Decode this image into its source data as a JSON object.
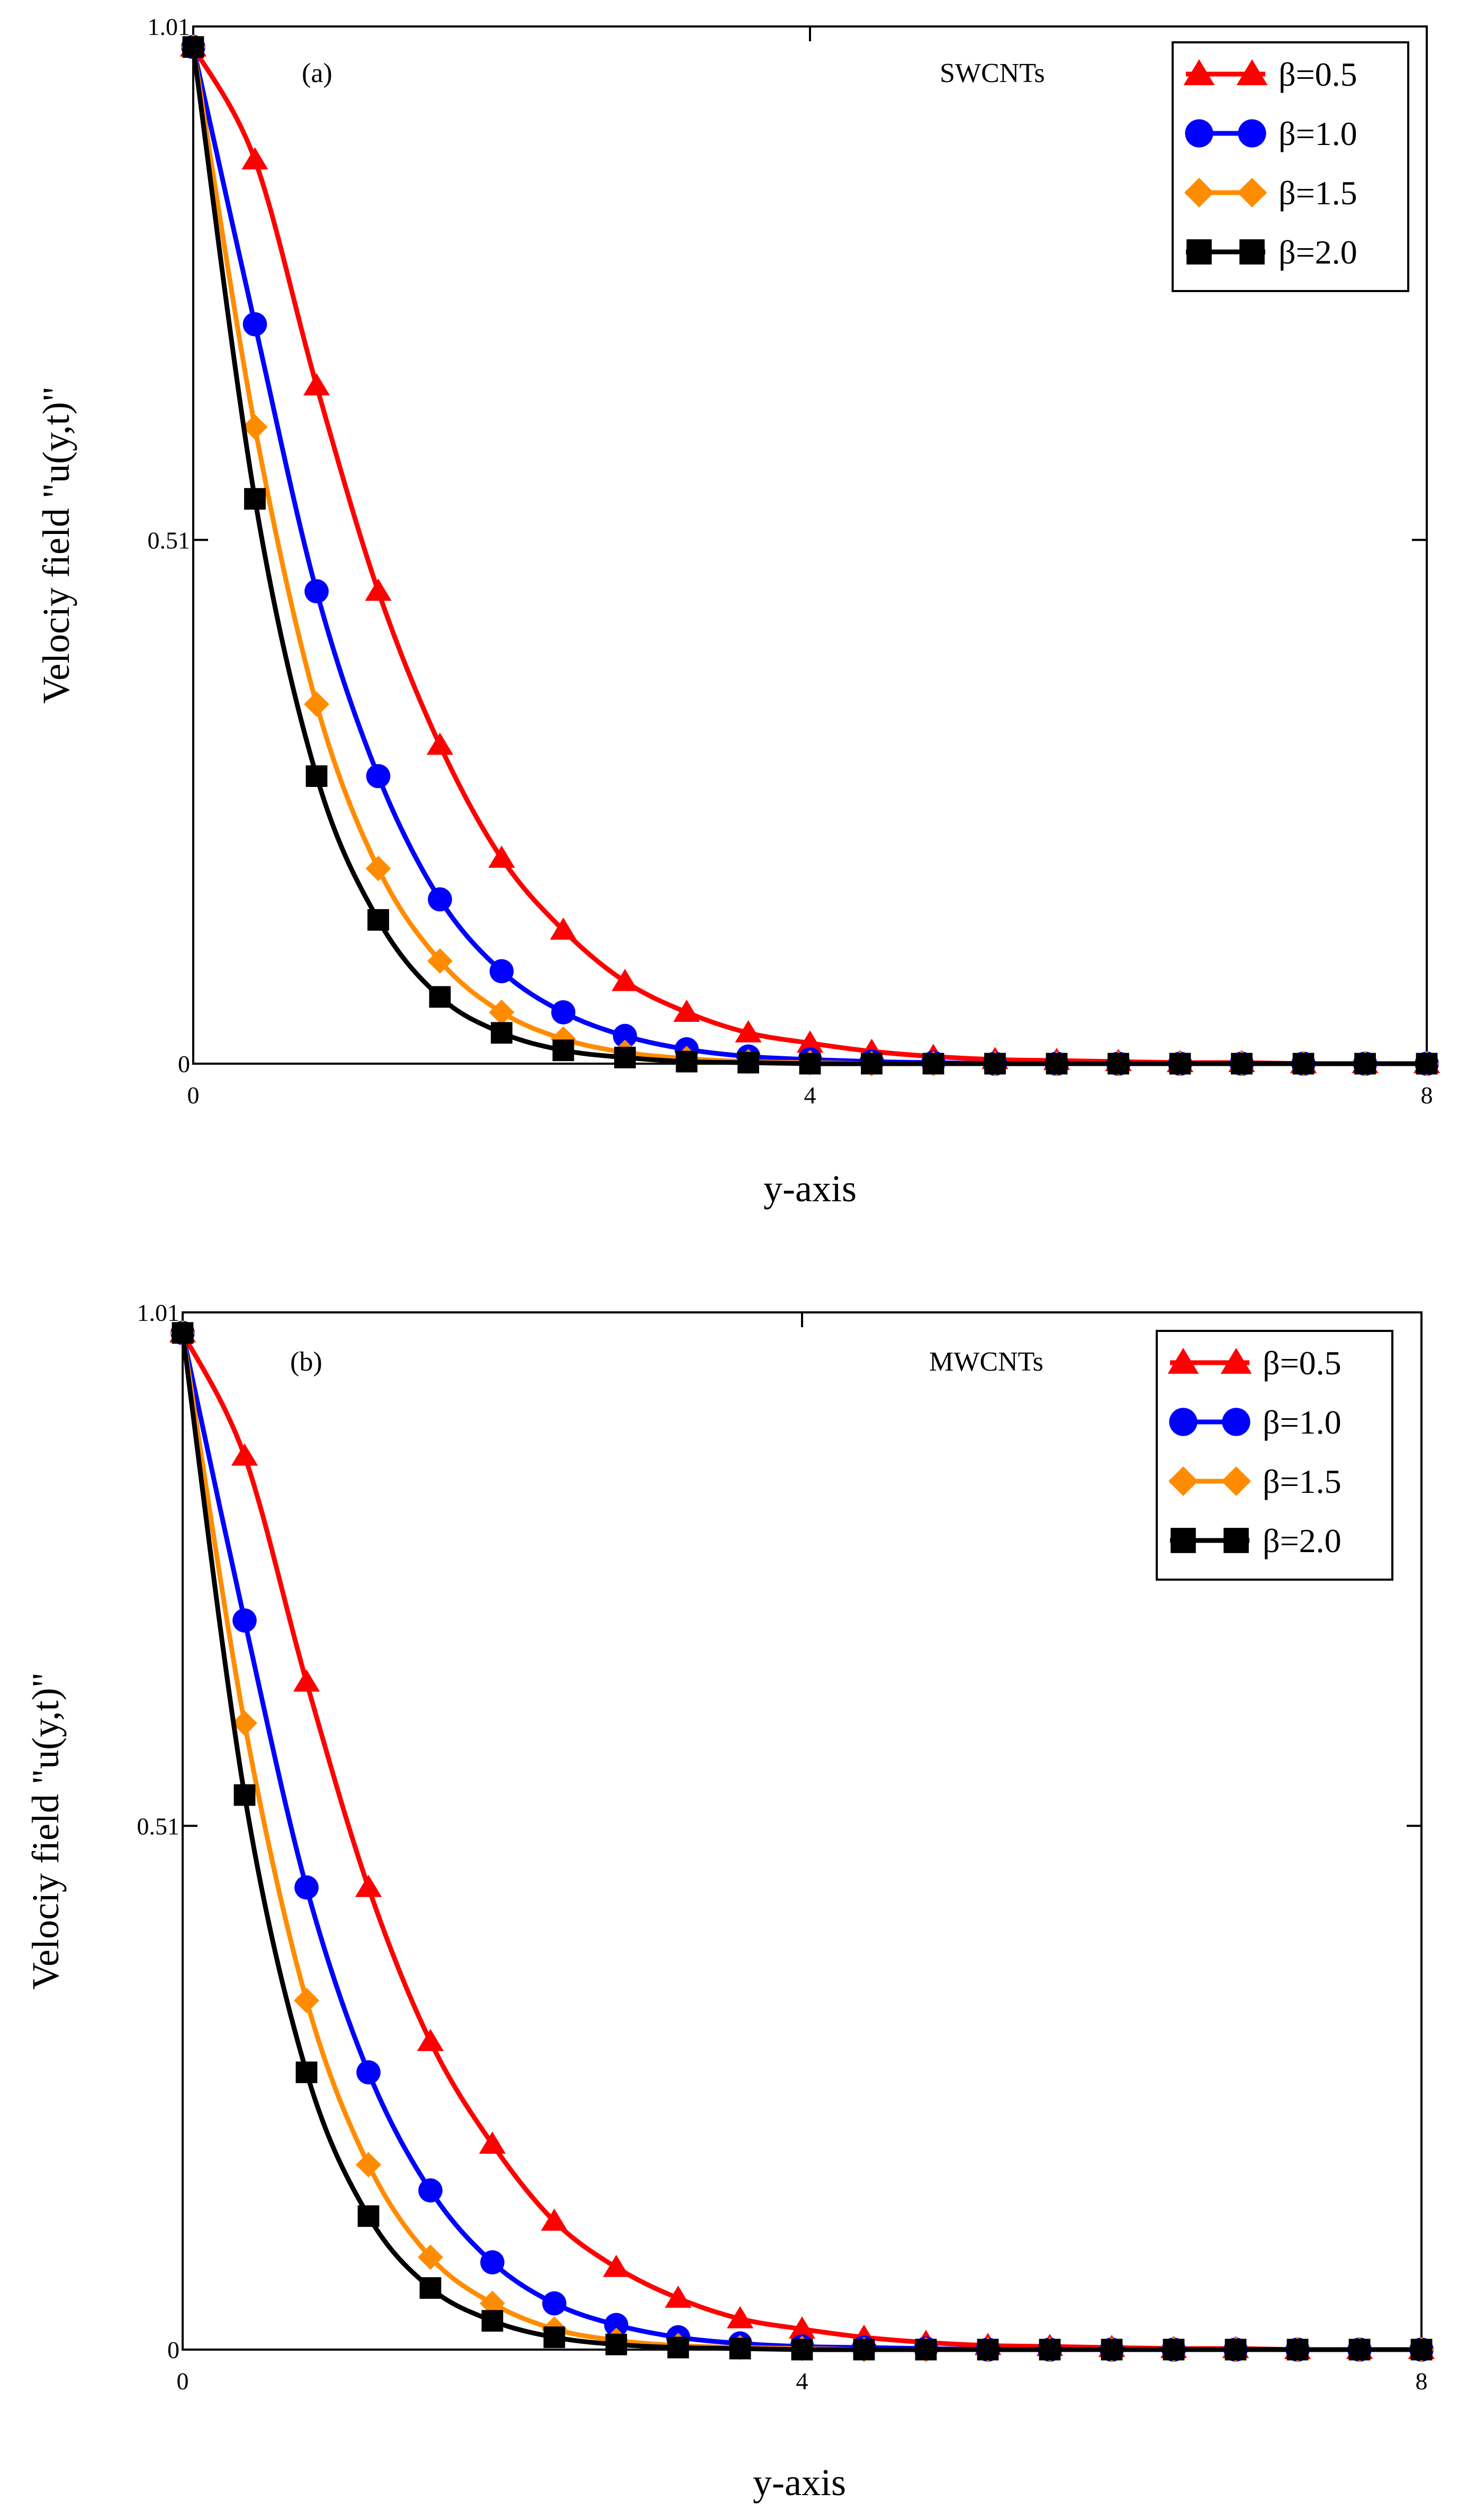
{
  "chart_data": [
    {
      "type": "line",
      "panel_label": "(a)",
      "annotation": "SWCNTs",
      "xlabel": "y-axis",
      "ylabel": "Velociy field \"u(y,t)\"",
      "xlim": [
        0,
        8
      ],
      "ylim": [
        0,
        1.01
      ],
      "x_ticks": [
        "0",
        "4",
        "8"
      ],
      "y_ticks": [
        "0",
        "0.51",
        "1.01"
      ],
      "x_tick_values": [
        0,
        4,
        8
      ],
      "y_tick_values": [
        0,
        0.51,
        1.01
      ],
      "legend_position": "top-right",
      "x": [
        0,
        0.4,
        0.8,
        1.2,
        1.6,
        2.0,
        2.4,
        2.8,
        3.2,
        3.6,
        4.0,
        4.4,
        4.8,
        5.2,
        5.6,
        6.0,
        6.4,
        6.8,
        7.2,
        7.6,
        8.0
      ],
      "series": [
        {
          "name": "β=0.5",
          "color": "#ff0000",
          "marker": "triangle",
          "values": [
            0.99,
            0.88,
            0.66,
            0.46,
            0.31,
            0.2,
            0.13,
            0.08,
            0.05,
            0.03,
            0.02,
            0.012,
            0.007,
            0.004,
            0.003,
            0.002,
            0.001,
            0.001,
            0.0,
            0.0,
            0.0
          ]
        },
        {
          "name": "β=1.0",
          "color": "#0000ff",
          "marker": "circle",
          "values": [
            0.99,
            0.72,
            0.46,
            0.28,
            0.16,
            0.09,
            0.05,
            0.027,
            0.014,
            0.007,
            0.004,
            0.002,
            0.001,
            0.0,
            0.0,
            0.0,
            0.0,
            0.0,
            0.0,
            0.0,
            0.0
          ]
        },
        {
          "name": "β=1.5",
          "color": "#ff8c00",
          "marker": "diamond",
          "values": [
            0.99,
            0.62,
            0.35,
            0.19,
            0.1,
            0.05,
            0.024,
            0.011,
            0.005,
            0.002,
            0.001,
            0.0,
            0.0,
            0.0,
            0.0,
            0.0,
            0.0,
            0.0,
            0.0,
            0.0,
            0.0
          ]
        },
        {
          "name": "β=2.0",
          "color": "#000000",
          "marker": "square",
          "values": [
            0.99,
            0.55,
            0.28,
            0.14,
            0.065,
            0.03,
            0.013,
            0.006,
            0.002,
            0.001,
            0.0,
            0.0,
            0.0,
            0.0,
            0.0,
            0.0,
            0.0,
            0.0,
            0.0,
            0.0,
            0.0
          ]
        }
      ]
    },
    {
      "type": "line",
      "panel_label": "(b)",
      "annotation": "MWCNTs",
      "xlabel": "y-axis",
      "ylabel": "Velociy field \"u(y,t)\"",
      "xlim": [
        0,
        8
      ],
      "ylim": [
        0,
        1.01
      ],
      "x_ticks": [
        "0",
        "4",
        "8"
      ],
      "y_ticks": [
        "0",
        "0.51",
        "1.01"
      ],
      "x_tick_values": [
        0,
        4,
        8
      ],
      "y_tick_values": [
        0,
        0.51,
        1.01
      ],
      "legend_position": "top-right",
      "x": [
        0,
        0.4,
        0.8,
        1.2,
        1.6,
        2.0,
        2.4,
        2.8,
        3.2,
        3.6,
        4.0,
        4.4,
        4.8,
        5.2,
        5.6,
        6.0,
        6.4,
        6.8,
        7.2,
        7.6,
        8.0
      ],
      "series": [
        {
          "name": "β=0.5",
          "color": "#ff0000",
          "marker": "triangle",
          "values": [
            0.99,
            0.87,
            0.65,
            0.45,
            0.3,
            0.2,
            0.125,
            0.08,
            0.05,
            0.03,
            0.02,
            0.012,
            0.007,
            0.004,
            0.003,
            0.002,
            0.001,
            0.001,
            0.0,
            0.0,
            0.0
          ]
        },
        {
          "name": "β=1.0",
          "color": "#0000ff",
          "marker": "circle",
          "values": [
            0.99,
            0.71,
            0.45,
            0.27,
            0.155,
            0.085,
            0.045,
            0.024,
            0.012,
            0.006,
            0.003,
            0.002,
            0.001,
            0.0,
            0.0,
            0.0,
            0.0,
            0.0,
            0.0,
            0.0,
            0.0
          ]
        },
        {
          "name": "β=1.5",
          "color": "#ff8c00",
          "marker": "diamond",
          "values": [
            0.99,
            0.61,
            0.34,
            0.18,
            0.09,
            0.045,
            0.02,
            0.009,
            0.004,
            0.002,
            0.001,
            0.0,
            0.0,
            0.0,
            0.0,
            0.0,
            0.0,
            0.0,
            0.0,
            0.0,
            0.0
          ]
        },
        {
          "name": "β=2.0",
          "color": "#000000",
          "marker": "square",
          "values": [
            0.99,
            0.54,
            0.27,
            0.13,
            0.06,
            0.028,
            0.012,
            0.005,
            0.002,
            0.001,
            0.0,
            0.0,
            0.0,
            0.0,
            0.0,
            0.0,
            0.0,
            0.0,
            0.0,
            0.0,
            0.0
          ]
        }
      ]
    }
  ]
}
